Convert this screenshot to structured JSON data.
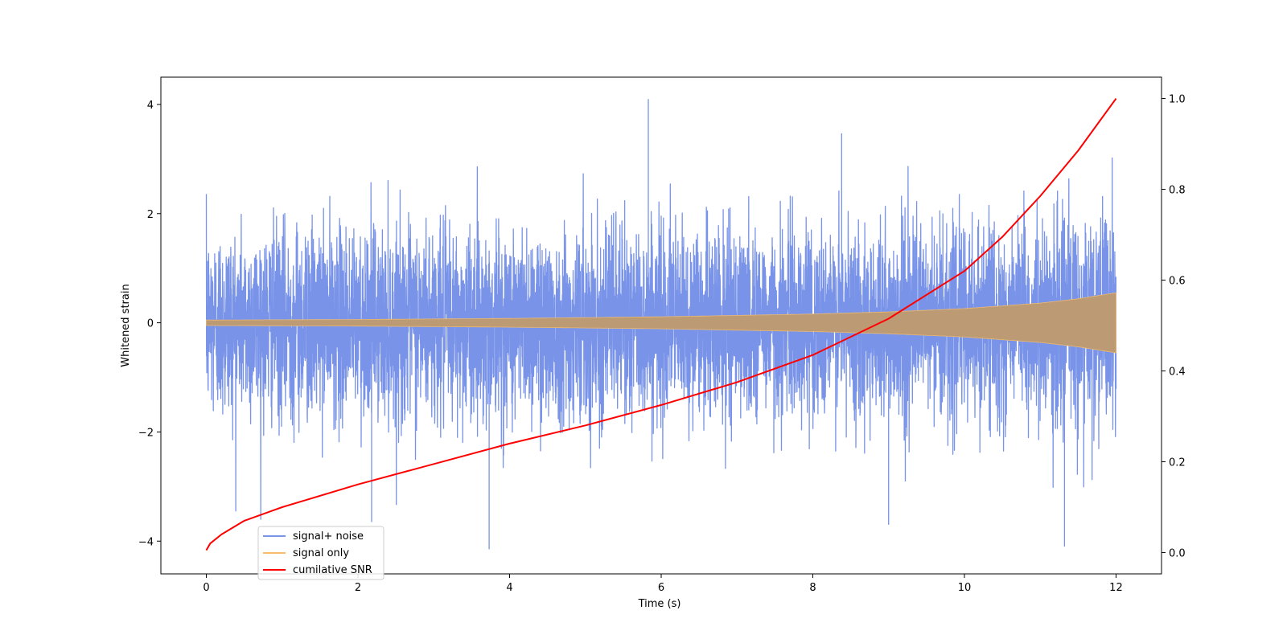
{
  "chart_data": {
    "type": "line",
    "xlabel": "Time (s)",
    "ylabel_left": "Whitened strain",
    "ylabel_right": "",
    "xlim": [
      -0.6,
      12.6
    ],
    "ylim_left": [
      -4.6,
      4.5
    ],
    "ylim_right": [
      -0.047,
      1.047
    ],
    "x_ticks": [
      0,
      2,
      4,
      6,
      8,
      10,
      12
    ],
    "y_left_ticks": [
      -4,
      -2,
      0,
      2,
      4
    ],
    "y_right_ticks": [
      0.0,
      0.2,
      0.4,
      0.6,
      0.8,
      1.0
    ],
    "x_tick_labels": [
      "0",
      "2",
      "4",
      "6",
      "8",
      "10",
      "12"
    ],
    "y_left_tick_labels": [
      "−4",
      "−2",
      "0",
      "2",
      "4"
    ],
    "y_right_tick_labels": [
      "0.0",
      "0.2",
      "0.4",
      "0.6",
      "0.8",
      "1.0"
    ],
    "grid": false,
    "legend_position": "lower-left",
    "series": [
      {
        "name": "signal+ noise",
        "axis": "left",
        "color": "#7893e8",
        "description_values": {
          "duration": 12,
          "noise_std": 1.0,
          "peak_max": 4.1,
          "peak_min": -4.15
        }
      },
      {
        "name": "signal only",
        "axis": "left",
        "color": "#f5bd6c",
        "envelope": {
          "x": [
            0,
            2,
            4,
            6,
            8,
            9,
            10,
            11,
            11.5,
            12
          ],
          "amp": [
            0.05,
            0.06,
            0.08,
            0.11,
            0.16,
            0.2,
            0.26,
            0.36,
            0.44,
            0.55
          ]
        }
      },
      {
        "name": "cumilative SNR",
        "axis": "right",
        "color": "#ff0000",
        "x": [
          0,
          0.05,
          0.2,
          0.5,
          1,
          2,
          3,
          4,
          5,
          6,
          7,
          8,
          9,
          10,
          10.5,
          11,
          11.5,
          12
        ],
        "y": [
          0.005,
          0.02,
          0.04,
          0.07,
          0.1,
          0.15,
          0.195,
          0.24,
          0.28,
          0.325,
          0.375,
          0.435,
          0.515,
          0.62,
          0.695,
          0.785,
          0.885,
          1.0
        ]
      }
    ]
  },
  "legend": {
    "items": [
      {
        "label": "signal+ noise",
        "color": "#7893e8"
      },
      {
        "label": "signal only",
        "color": "#f5bd6c"
      },
      {
        "label": "cumilative SNR",
        "color": "#ff0000"
      }
    ]
  }
}
